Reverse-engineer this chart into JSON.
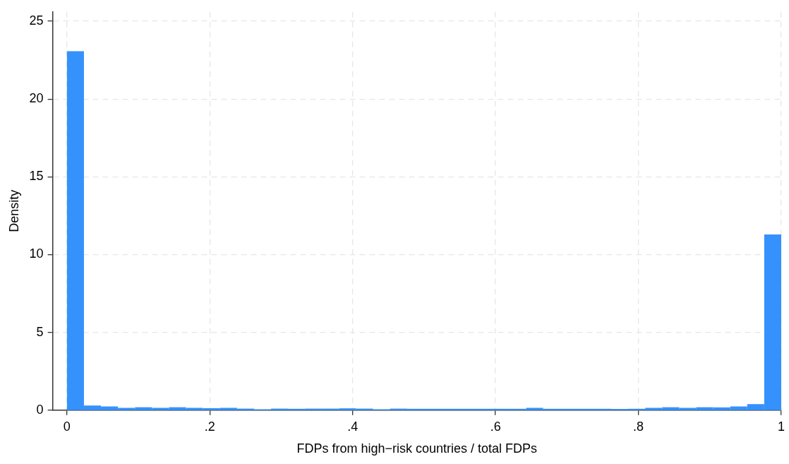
{
  "chart_data": {
    "type": "histogram",
    "xlabel": "FDPs from high−risk countries / total FDPs",
    "ylabel": "Density",
    "color": "#3592fd",
    "bins": [
      0,
      0.02381,
      0.04762,
      0.07143,
      0.09524,
      0.11905,
      0.14286,
      0.16667,
      0.19048,
      0.21429,
      0.2381,
      0.2619,
      0.28571,
      0.30952,
      0.33333,
      0.35714,
      0.38095,
      0.40476,
      0.42857,
      0.45238,
      0.47619,
      0.5,
      0.52381,
      0.54762,
      0.57143,
      0.59524,
      0.61905,
      0.64286,
      0.66667,
      0.69048,
      0.71429,
      0.7381,
      0.7619,
      0.78571,
      0.80952,
      0.83333,
      0.85714,
      0.88095,
      0.90476,
      0.92857,
      0.95238,
      0.97619,
      1
    ],
    "values": [
      23.07,
      0.3,
      0.24,
      0.15,
      0.19,
      0.15,
      0.19,
      0.15,
      0.13,
      0.15,
      0.1,
      0.06,
      0.1,
      0.09,
      0.1,
      0.1,
      0.12,
      0.1,
      0.06,
      0.1,
      0.09,
      0.09,
      0.09,
      0.09,
      0.09,
      0.09,
      0.09,
      0.15,
      0.09,
      0.09,
      0.09,
      0.09,
      0.08,
      0.09,
      0.15,
      0.19,
      0.15,
      0.19,
      0.18,
      0.24,
      0.39,
      11.29
    ],
    "xlim": [
      -0.02,
      1
    ],
    "ylim": [
      0,
      25.6
    ],
    "xticks": [
      0,
      {
        "value": 0.2,
        "label": ".2"
      },
      {
        "value": 0.4,
        "label": ".4"
      },
      {
        "value": 0.6,
        "label": ".6"
      },
      {
        "value": 0.8,
        "label": ".8"
      },
      1
    ],
    "yticks": [
      0,
      5,
      10,
      15,
      20,
      25
    ],
    "grid": true
  }
}
